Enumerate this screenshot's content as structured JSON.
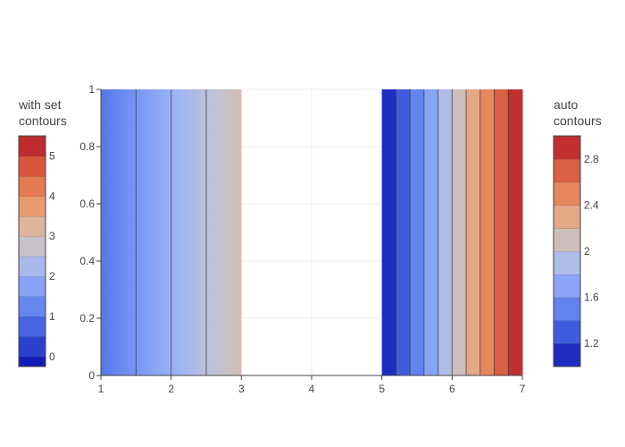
{
  "chart_data": {
    "type": "heatmap",
    "x_axis": {
      "range": [
        1,
        7
      ],
      "ticks": [
        1,
        2,
        3,
        4,
        5,
        6,
        7
      ]
    },
    "y_axis": {
      "range": [
        0,
        1
      ],
      "ticks": [
        0,
        0.2,
        0.4,
        0.6,
        0.8,
        1
      ]
    },
    "grid": true,
    "traces": [
      {
        "label": "with set contours",
        "x_range": [
          1,
          3
        ],
        "z_at_x": [
          [
            1,
            1
          ],
          [
            3,
            3
          ]
        ],
        "contour_lines_x": [
          1.5,
          2,
          2.5
        ],
        "colorbar": {
          "position": "left",
          "title_lines": [
            "with set",
            "contours"
          ],
          "zmin": -0.25,
          "zmax": 5.5,
          "tick_labels": [
            "0",
            "1",
            "2",
            "3",
            "4",
            "5"
          ],
          "tick_values": [
            0,
            1,
            2,
            3,
            4,
            5
          ],
          "level_step": 0.5
        }
      },
      {
        "label": "auto contours",
        "x_range": [
          5,
          7
        ],
        "z_at_x": [
          [
            5,
            1
          ],
          [
            7,
            3
          ]
        ],
        "contour_lines_x": [
          5.2,
          5.4,
          5.6,
          5.8,
          6.0,
          6.2,
          6.4,
          6.6,
          6.8
        ],
        "colorbar": {
          "position": "right",
          "title_lines": [
            "auto",
            "contours"
          ],
          "zmin": 1.0,
          "zmax": 3.0,
          "tick_labels": [
            "1.2",
            "1.6",
            "2",
            "2.4",
            "2.8"
          ],
          "tick_values": [
            1.2,
            1.6,
            2.0,
            2.4,
            2.8
          ],
          "level_step": 0.2
        }
      }
    ],
    "colorscale": [
      "#0508b8",
      "#1910d8",
      "#3c19f0",
      "#6b1cfb",
      "#981cfd",
      "#bf1cfd",
      "#dd2bfd",
      "#f246fe",
      "#fc67fd",
      "#fea5fd",
      "#febefe",
      "#fec3fe"
    ],
    "coolwarm": [
      "#0a11b0",
      "#3049d4",
      "#4f6fe8",
      "#7595f5",
      "#9cb3f7",
      "#c0c4d6",
      "#dcb7a0",
      "#e9996d",
      "#e2744f",
      "#d14b36",
      "#b2132a"
    ]
  }
}
